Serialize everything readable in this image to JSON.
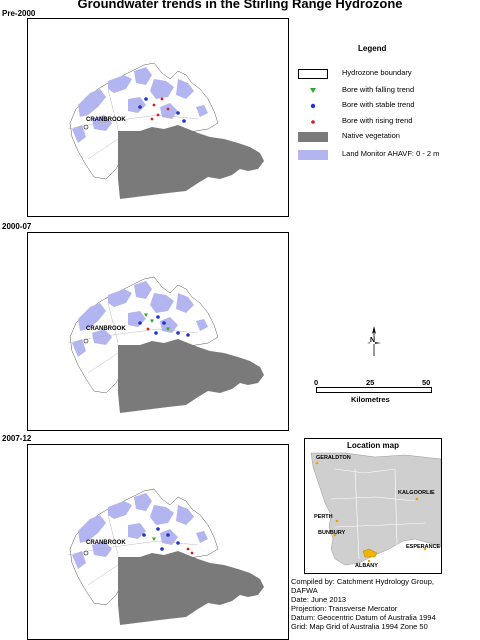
{
  "title": "Groundwater trends in the Stirling Range Hydrozone",
  "panels": [
    {
      "label": "Pre-2000",
      "town": "CRANBROOK"
    },
    {
      "label": "2000-07",
      "town": "CRANBROOK"
    },
    {
      "label": "2007-12",
      "town": "CRANBROOK"
    }
  ],
  "legend": {
    "title": "Legend",
    "items": [
      {
        "label": "Hydrozone boundary",
        "symbol": "outline-box"
      },
      {
        "label": "Bore with falling trend",
        "symbol": "green-dot",
        "color": "#2eaa2e"
      },
      {
        "label": "Bore with stable trend",
        "symbol": "blue-dot",
        "color": "#2233cc"
      },
      {
        "label": "Bore with rising trend",
        "symbol": "red-dot",
        "color": "#cc2222"
      },
      {
        "label": "Native vegetation",
        "symbol": "grey-box",
        "color": "#7a7a7a"
      },
      {
        "label": "Land Monitor AHAVF: 0 - 2 m",
        "symbol": "lavender-box",
        "color": "#b3b5f0"
      }
    ]
  },
  "north_arrow": {
    "label": "N"
  },
  "scale": {
    "ticks": [
      "0",
      "25",
      "50"
    ],
    "unit": "Kilometres"
  },
  "location_map": {
    "title": "Location map",
    "towns": [
      "GERALDTON",
      "KALGOORLIE",
      "PERTH",
      "BUNBURY",
      "ESPERANCE",
      "ALBANY"
    ]
  },
  "metadata": [
    "Compiled by:  Catchment Hydrology Group,",
    "DAFWA",
    "Date:  June 2013",
    "Projection:  Transverse Mercator",
    "Datum:  Geocentric Datum of Australia 1994",
    "Grid:  Map Grid of Australia 1994 Zone 50"
  ]
}
